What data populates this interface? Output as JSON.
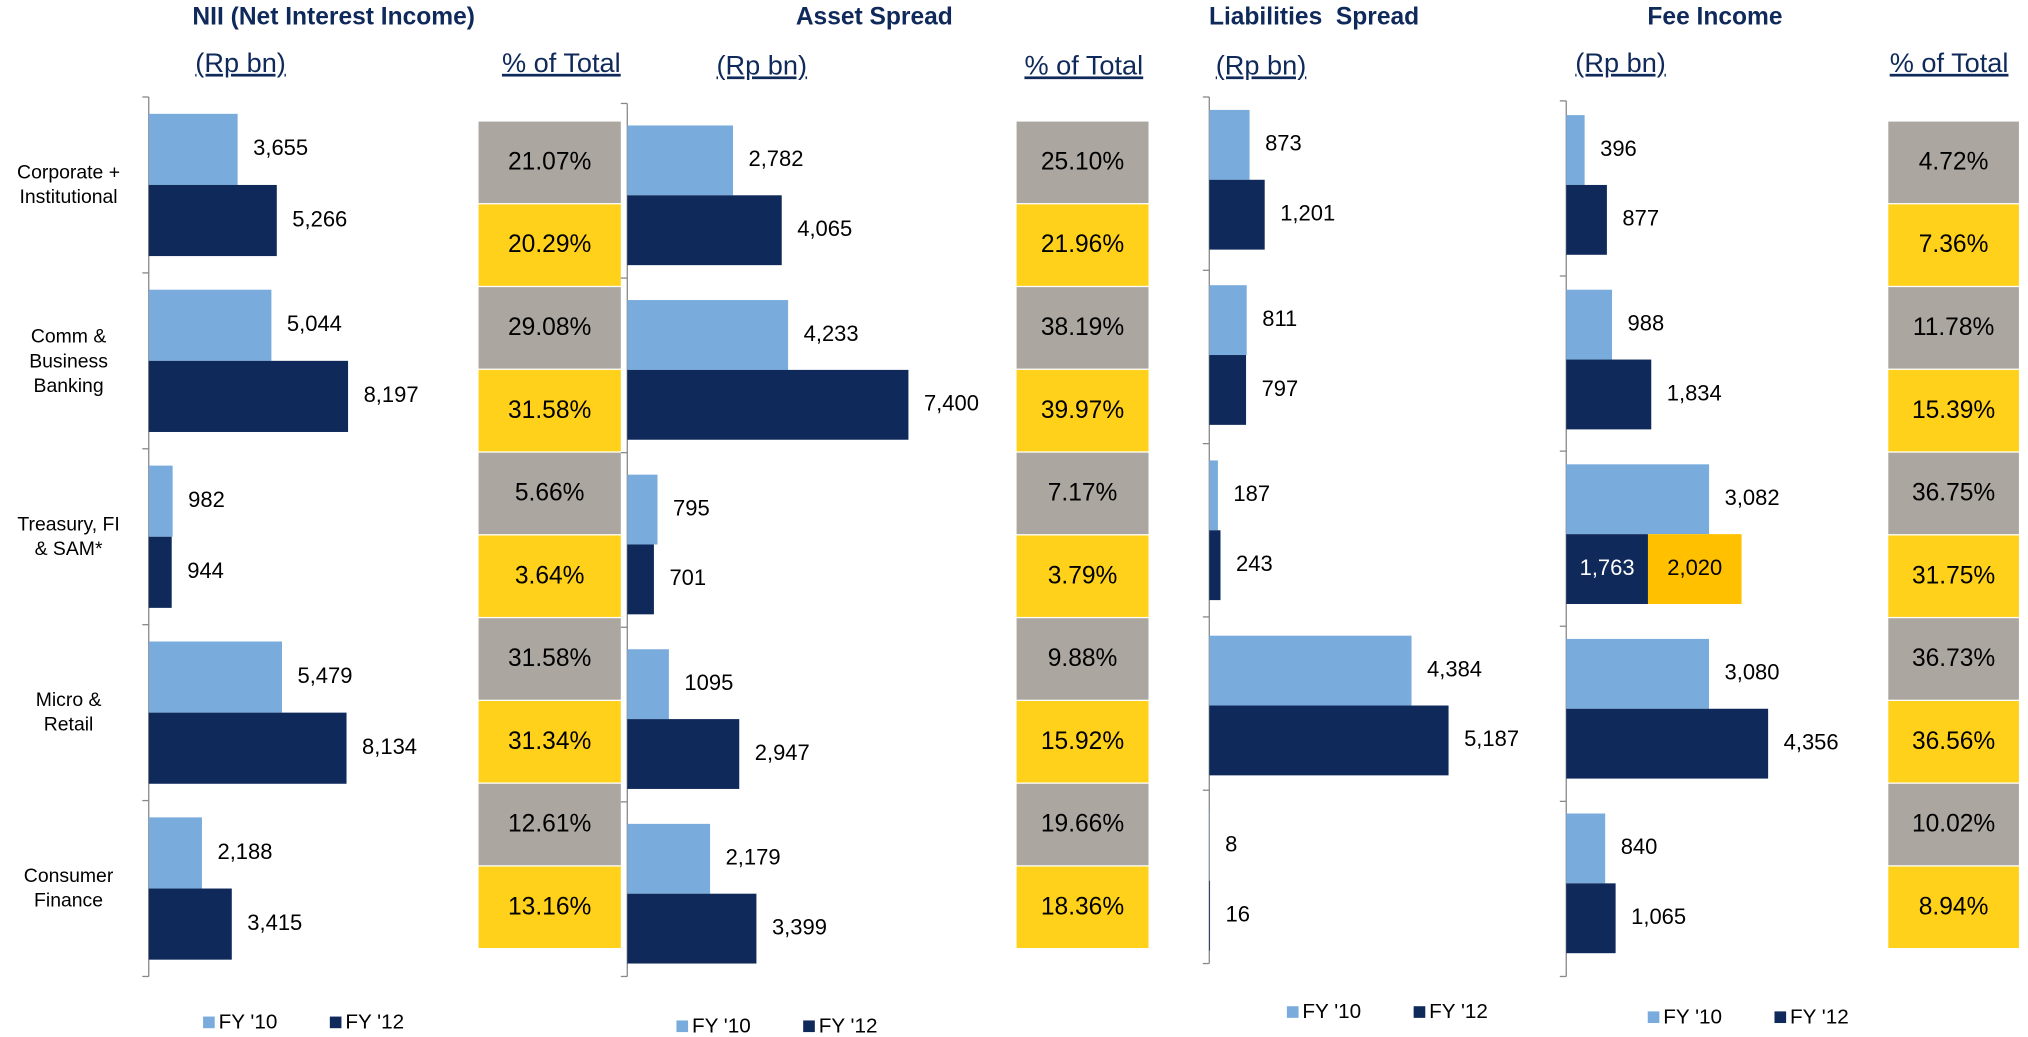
{
  "chart_data": [
    {
      "type": "hbar",
      "title": "NII (Net Interest Income)",
      "unit_label": "(Rp bn)",
      "share_label": "% of Total",
      "categories": [
        "Corporate +\nInstitutional",
        "Comm &\nBusiness\nBanking",
        "Treasury, FI\n& SAM*",
        "Micro &\nRetail",
        "Consumer\nFinance"
      ],
      "xlim": [
        0,
        10000
      ],
      "series": [
        {
          "name": "FY '10",
          "color": "#79acdc",
          "values": [
            3655,
            5044,
            982,
            5479,
            2188
          ],
          "value_labels": [
            "3,655",
            "5,044",
            "982",
            "5,479",
            "2,188"
          ],
          "shares": [
            21.07,
            29.08,
            5.66,
            31.58,
            12.61
          ],
          "share_labels": [
            "21.07%",
            "29.08%",
            "5.66%",
            "31.58%",
            "12.61%"
          ],
          "share_color": "#aba6a0"
        },
        {
          "name": "FY '12",
          "color": "#0f2a5a",
          "values": [
            5266,
            8197,
            944,
            8134,
            3415
          ],
          "value_labels": [
            "5,266",
            "8,197",
            "944",
            "8,134",
            "3,415"
          ],
          "shares": [
            20.29,
            31.58,
            3.64,
            31.34,
            13.16
          ],
          "share_labels": [
            "20.29%",
            "31.58%",
            "3.64%",
            "31.34%",
            "13.16%"
          ],
          "share_color": "#ffd11a"
        }
      ]
    },
    {
      "type": "hbar",
      "title": "Asset Spread",
      "unit_label": "(Rp bn)",
      "share_label": "% of Total",
      "xlim": [
        0,
        8000
      ],
      "series": [
        {
          "name": "FY '10",
          "color": "#79acdc",
          "values": [
            2782,
            4233,
            795,
            1095,
            2179
          ],
          "value_labels": [
            "2,782",
            "4,233",
            "795",
            "1095",
            "2,179"
          ],
          "shares": [
            25.1,
            38.19,
            7.17,
            9.88,
            19.66
          ],
          "share_labels": [
            "25.10%",
            "38.19%",
            "7.17%",
            "9.88%",
            "19.66%"
          ],
          "share_color": "#aba6a0"
        },
        {
          "name": "FY '12",
          "color": "#0f2a5a",
          "values": [
            4065,
            7400,
            701,
            2947,
            3399
          ],
          "value_labels": [
            "4,065",
            "7,400",
            "701",
            "2,947",
            "3,399"
          ],
          "shares": [
            21.96,
            39.97,
            3.79,
            15.92,
            18.36
          ],
          "share_labels": [
            "21.96%",
            "39.97%",
            "3.79%",
            "15.92%",
            "18.36%"
          ],
          "share_color": "#ffd11a"
        }
      ]
    },
    {
      "type": "hbar",
      "title": "Liabilities  Spread",
      "unit_label": "(Rp bn)",
      "xlim": [
        0,
        6000
      ],
      "series": [
        {
          "name": "FY '10",
          "color": "#79acdc",
          "values": [
            873,
            811,
            187,
            4384,
            8
          ],
          "value_labels": [
            "873",
            "811",
            "187",
            "4,384",
            "8"
          ]
        },
        {
          "name": "FY '12",
          "color": "#0f2a5a",
          "values": [
            1201,
            797,
            243,
            5187,
            16
          ],
          "value_labels": [
            "1,201",
            "797",
            "243",
            "5,187",
            "16"
          ]
        }
      ]
    },
    {
      "type": "hbar",
      "title": "Fee Income",
      "unit_label": "(Rp bn)",
      "share_label": "% of Total",
      "xlim": [
        0,
        6000
      ],
      "series": [
        {
          "name": "FY '10",
          "color": "#79acdc",
          "values": [
            396,
            988,
            3082,
            3080,
            840
          ],
          "value_labels": [
            "396",
            "988",
            "3,082",
            "3,080",
            "840"
          ],
          "shares": [
            4.72,
            11.78,
            36.75,
            36.73,
            10.02
          ],
          "share_labels": [
            "4.72%",
            "11.78%",
            "36.75%",
            "36.73%",
            "10.02%"
          ],
          "share_color": "#aba6a0"
        },
        {
          "name": "FY '12",
          "color": "#0f2a5a",
          "values": [
            877,
            1834,
            1763,
            4356,
            1065
          ],
          "value_labels": [
            "877",
            "1,834",
            "1,763",
            "4,356",
            "1,065"
          ],
          "shares": [
            7.36,
            15.39,
            31.75,
            36.56,
            8.94
          ],
          "share_labels": [
            "7.36%",
            "15.39%",
            "31.75%",
            "36.56%",
            "8.94%"
          ],
          "share_color": "#ffd11a"
        },
        {
          "color": "#ffc000",
          "stack": true,
          "values": [
            null,
            null,
            2020,
            null,
            null
          ],
          "value_labels": [
            null,
            null,
            "2,020",
            null,
            null
          ]
        }
      ]
    }
  ]
}
